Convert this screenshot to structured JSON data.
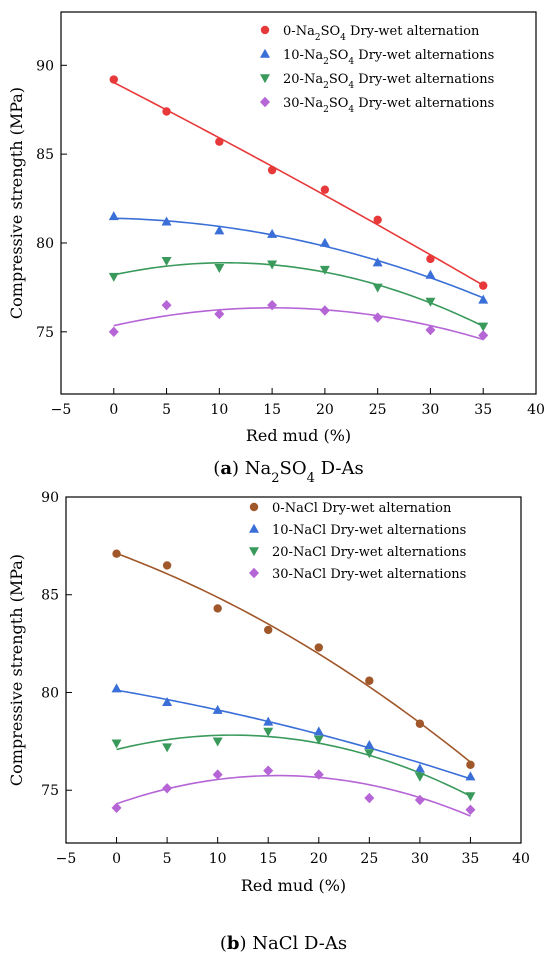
{
  "chart_data": [
    {
      "type": "scatter",
      "caption": {
        "letter": "a",
        "text": "Na2SO4 D-As"
      },
      "xlabel": "Red mud (%)",
      "ylabel": "Compressive strength (MPa)",
      "xlim": [
        -5,
        40
      ],
      "ylim": [
        71.5,
        93
      ],
      "xticks": [
        -5,
        0,
        5,
        10,
        15,
        20,
        25,
        30,
        35,
        40
      ],
      "yticks": [
        75,
        80,
        85,
        90
      ],
      "legend_position": "top-right",
      "x": [
        0,
        5,
        10,
        15,
        20,
        25,
        30,
        35
      ],
      "series": [
        {
          "name": "0-Na2SO4 Dry-wet alternation",
          "marker": "circle",
          "color": "#e8393a",
          "values": [
            89.2,
            87.4,
            85.7,
            84.1,
            83.0,
            81.3,
            79.1,
            77.6
          ]
        },
        {
          "name": "10-Na2SO4 Dry-wet alternations",
          "marker": "triangle-up",
          "color": "#3a6fd8",
          "values": [
            81.5,
            81.2,
            80.7,
            80.5,
            80.0,
            78.9,
            78.2,
            76.8
          ]
        },
        {
          "name": "20-Na2SO4 Dry-wet alternations",
          "marker": "triangle-down",
          "color": "#3a9a5c",
          "values": [
            78.1,
            79.0,
            78.6,
            78.8,
            78.5,
            77.5,
            76.7,
            75.3
          ]
        },
        {
          "name": "30-Na2SO4 Dry-wet alternations",
          "marker": "diamond",
          "color": "#b565d6",
          "values": [
            75.0,
            76.5,
            76.0,
            76.5,
            76.2,
            75.8,
            75.1,
            74.8
          ]
        }
      ]
    },
    {
      "type": "scatter",
      "caption": {
        "letter": "b",
        "text": "NaCl D-As"
      },
      "xlabel": "Red mud (%)",
      "ylabel": "Compressive strength (MPa)",
      "xlim": [
        -5,
        40
      ],
      "ylim": [
        72.3,
        90
      ],
      "xticks": [
        -5,
        0,
        5,
        10,
        15,
        20,
        25,
        30,
        35,
        40
      ],
      "yticks": [
        75,
        80,
        85,
        90
      ],
      "legend_position": "top-right",
      "x": [
        0,
        5,
        10,
        15,
        20,
        25,
        30,
        35
      ],
      "series": [
        {
          "name": "0-NaCl Dry-wet alternation",
          "marker": "circle",
          "color": "#a0572a",
          "values": [
            87.1,
            86.5,
            84.3,
            83.2,
            82.3,
            80.6,
            78.4,
            76.3
          ]
        },
        {
          "name": "10-NaCl Dry-wet alternations",
          "marker": "triangle-up",
          "color": "#3a6fd8",
          "values": [
            80.2,
            79.5,
            79.1,
            78.5,
            78.0,
            77.3,
            76.1,
            75.7
          ]
        },
        {
          "name": "20-NaCl Dry-wet alternations",
          "marker": "triangle-down",
          "color": "#3a9a5c",
          "values": [
            77.4,
            77.2,
            77.5,
            78.0,
            77.6,
            76.9,
            75.7,
            74.7
          ]
        },
        {
          "name": "30-NaCl Dry-wet alternations",
          "marker": "diamond",
          "color": "#b565d6",
          "values": [
            74.1,
            75.1,
            75.8,
            76.0,
            75.8,
            74.6,
            74.5,
            74.0
          ]
        }
      ]
    }
  ]
}
